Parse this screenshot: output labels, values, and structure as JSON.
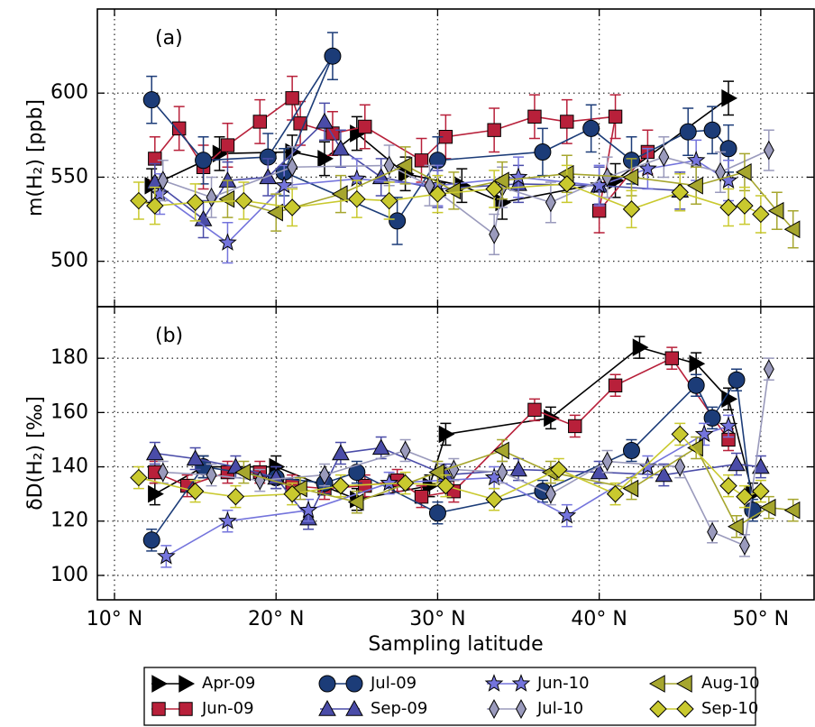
{
  "chart_data": [
    {
      "type": "line",
      "ylabel": "m(H₂) [ppb]",
      "annotation": "(a)",
      "xlim": [
        8.94,
        53.3
      ],
      "ylim": [
        473,
        650
      ],
      "xticks": [
        10,
        20,
        30,
        40,
        50
      ],
      "yticks": [
        500,
        550,
        600
      ],
      "grid": true,
      "series": [
        {
          "name": "Apr-09",
          "color": "#000000",
          "marker": "tri-right",
          "error": 10,
          "x": [
            12.3,
            16.5,
            21,
            23,
            25,
            28,
            31.5,
            34,
            41,
            48
          ],
          "values": [
            545,
            564,
            565,
            561,
            576,
            552,
            545,
            535,
            548,
            597
          ]
        },
        {
          "name": "Jun-09",
          "color": "#b8203a",
          "marker": "square",
          "error": 13,
          "x": [
            12.5,
            14,
            15.5,
            17,
            19,
            21,
            21.5,
            23.5,
            25.5,
            29,
            30.5,
            33.5,
            36,
            38,
            41,
            40,
            43
          ],
          "values": [
            561,
            579,
            556,
            569,
            583,
            597,
            582,
            576,
            580,
            560,
            574,
            578,
            586,
            583,
            586,
            530,
            565
          ]
        },
        {
          "name": "Jul-09",
          "color": "#1c3c78",
          "marker": "circle",
          "error": 14,
          "x": [
            12.3,
            15.5,
            19.5,
            23.5,
            20.5,
            27.5,
            30,
            36.5,
            39.5,
            42,
            45.5,
            47,
            48
          ],
          "values": [
            596,
            560,
            562,
            622,
            553,
            524,
            560,
            565,
            579,
            560,
            577,
            578,
            567
          ]
        },
        {
          "name": "Sep-09",
          "color": "#4a4ca8",
          "marker": "tri-up",
          "error": 11,
          "x": [
            12.5,
            15.5,
            17,
            19.5,
            23,
            24,
            26.5,
            30,
            35,
            40,
            45
          ],
          "values": [
            547,
            525,
            548,
            550,
            583,
            567,
            550,
            543,
            546,
            545,
            542
          ]
        },
        {
          "name": "Jun-10",
          "color": "#7474dc",
          "marker": "star",
          "error": 12,
          "x": [
            12.8,
            17,
            20.5,
            25,
            30,
            35,
            40,
            43,
            46,
            48
          ],
          "values": [
            540,
            511,
            545,
            549,
            545,
            550,
            545,
            555,
            560,
            548
          ]
        },
        {
          "name": "Jul-10",
          "color": "#9a9abc",
          "marker": "diamond-thin",
          "error": 12,
          "x": [
            13,
            16,
            21,
            27,
            29.5,
            33.5,
            34,
            37,
            40.5,
            44,
            47.5,
            50.5
          ],
          "values": [
            548,
            538,
            556,
            557,
            545,
            516,
            544,
            535,
            550,
            562,
            553,
            566
          ]
        },
        {
          "name": "Aug-10",
          "color": "#a6a62e",
          "marker": "tri-left",
          "error": 11,
          "x": [
            17,
            20,
            24,
            28,
            31,
            34,
            38,
            42,
            46,
            49,
            51,
            52
          ],
          "values": [
            537,
            529,
            540,
            557,
            542,
            548,
            552,
            550,
            545,
            553,
            530,
            519
          ]
        },
        {
          "name": "Sep-10",
          "color": "#c9c92e",
          "marker": "diamond",
          "error": 11,
          "x": [
            11.5,
            12.5,
            15,
            18,
            21,
            25,
            27,
            30,
            33.5,
            38,
            42,
            45,
            48,
            49,
            50
          ],
          "values": [
            536,
            533,
            535,
            536,
            532,
            537,
            536,
            540,
            543,
            546,
            531,
            541,
            532,
            533,
            528
          ]
        }
      ]
    },
    {
      "type": "line",
      "ylabel": "δD(H₂) [‰]",
      "xlabel": "Sampling latitude",
      "annotation": "(b)",
      "xlim": [
        8.94,
        53.3
      ],
      "ylim": [
        91,
        199
      ],
      "xticks": [
        {
          "value": 10,
          "label": "10° N"
        },
        {
          "value": 20,
          "label": "20° N"
        },
        {
          "value": 30,
          "label": "30° N"
        },
        {
          "value": 40,
          "label": "40° N"
        },
        {
          "value": 50,
          "label": "50° N"
        }
      ],
      "yticks": [
        100,
        120,
        140,
        160,
        180
      ],
      "grid": true,
      "series": [
        {
          "color": "#000000",
          "marker": "tri-right",
          "error": 4,
          "x": [
            12.5,
            15.5,
            20,
            25,
            29.5,
            30.5,
            37,
            42.5,
            46,
            48,
            49.5
          ],
          "values": [
            130,
            140,
            140,
            128,
            133,
            152,
            158,
            184,
            178,
            165,
            130
          ]
        },
        {
          "color": "#b8203a",
          "marker": "square",
          "error": 4,
          "x": [
            12.5,
            14.5,
            17,
            19,
            21,
            23,
            25.5,
            27.5,
            29,
            31,
            36,
            38.5,
            41,
            44.5,
            48
          ],
          "values": [
            138,
            133,
            138,
            138,
            133,
            132,
            133,
            135,
            129,
            131,
            161,
            155,
            170,
            180,
            150
          ]
        },
        {
          "color": "#1c3c78",
          "marker": "circle",
          "error": 4,
          "x": [
            12.3,
            15.5,
            20,
            23,
            25,
            30,
            36.5,
            42,
            46,
            47,
            48.5,
            49.5
          ],
          "values": [
            113,
            140,
            136,
            134,
            138,
            123,
            131,
            146,
            170,
            158,
            172,
            124
          ]
        },
        {
          "color": "#4a4ca8",
          "marker": "tri-up",
          "error": 4,
          "x": [
            12.5,
            15,
            17.5,
            20,
            22,
            24,
            26.5,
            30.5,
            35,
            40,
            44,
            48.5,
            50
          ],
          "values": [
            145,
            143,
            140,
            136,
            121,
            145,
            147,
            137,
            139,
            138,
            137,
            141,
            140
          ]
        },
        {
          "color": "#7474dc",
          "marker": "star",
          "error": 4,
          "x": [
            13.2,
            17,
            22,
            27,
            33.5,
            38,
            43,
            46.5,
            48
          ],
          "values": [
            107,
            120,
            124,
            134,
            136,
            122,
            140,
            152,
            155
          ]
        },
        {
          "color": "#9a9abc",
          "marker": "diamond-thin",
          "error": 4,
          "x": [
            13,
            16,
            19,
            23,
            28,
            31,
            34,
            37,
            40.5,
            45,
            47,
            49,
            50.5
          ],
          "values": [
            138,
            137,
            135,
            137,
            146,
            139,
            138,
            130,
            142,
            140,
            116,
            111,
            176
          ]
        },
        {
          "color": "#a6a62e",
          "marker": "tri-left",
          "error": 4,
          "x": [
            18,
            21.5,
            25,
            30,
            34,
            37,
            42,
            46,
            48.5,
            50.5,
            52
          ],
          "values": [
            138,
            132,
            127,
            138,
            146,
            138,
            132,
            147,
            118,
            125,
            124
          ]
        },
        {
          "color": "#c9c92e",
          "marker": "diamond",
          "error": 4,
          "x": [
            11.5,
            15,
            17.5,
            21,
            24,
            28,
            30.5,
            33.5,
            37.5,
            41,
            45,
            48,
            49,
            50
          ],
          "values": [
            136,
            131,
            129,
            130,
            133,
            134,
            133,
            128,
            139,
            130,
            152,
            133,
            129,
            131
          ]
        }
      ]
    }
  ]
}
